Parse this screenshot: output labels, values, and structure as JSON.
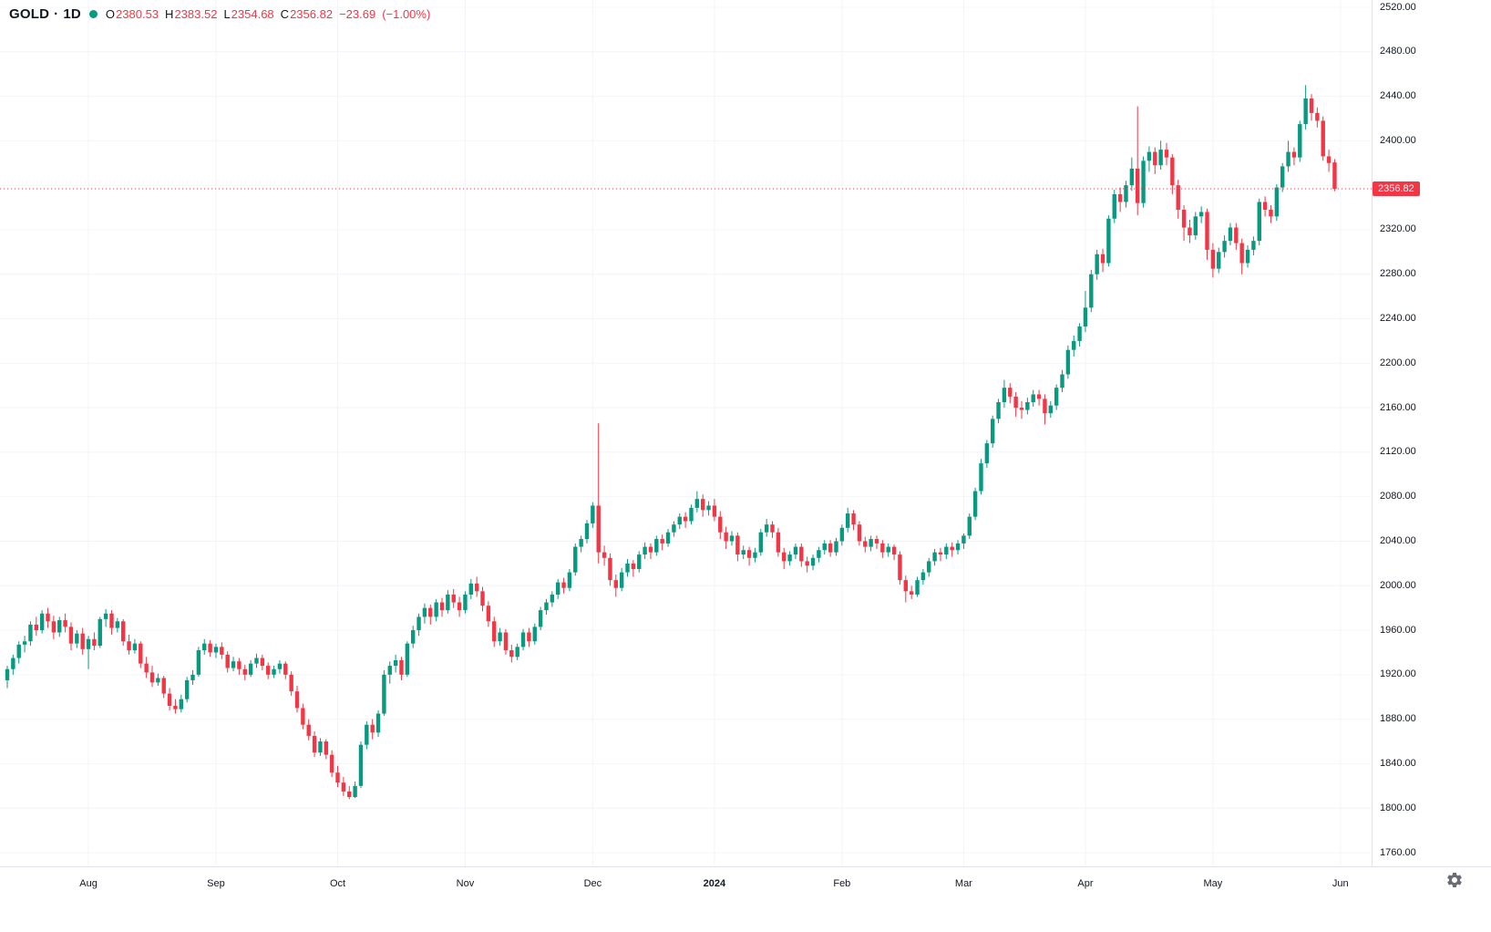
{
  "legend": {
    "symbol": "GOLD",
    "separator": "·",
    "interval": "1D",
    "o_label": "O",
    "o": "2380.53",
    "h_label": "H",
    "h": "2383.52",
    "l_label": "L",
    "l": "2354.68",
    "c_label": "C",
    "c": "2356.82",
    "change": "−23.69",
    "change_pct": "(−1.00%)"
  },
  "colors": {
    "up": "#089981",
    "down": "#f23645",
    "text": "#131722",
    "grid": "#f2f4f7",
    "axis_line": "#e0e3eb",
    "last_price_badge": "#f23645",
    "marker": "#089981",
    "gear": "#50535e"
  },
  "chart_data": {
    "type": "candlestick",
    "title": "GOLD 1D daily candlestick chart",
    "symbol": "GOLD",
    "interval": "1D",
    "ylim": [
      1760,
      2520
    ],
    "y_tick_step": 40,
    "y_tick_labels": [
      "2520.00",
      "2480.00",
      "2440.00",
      "2400.00",
      "2320.00",
      "2280.00",
      "2240.00",
      "2200.00",
      "2160.00",
      "2120.00",
      "2080.00",
      "2040.00",
      "2000.00",
      "1960.00",
      "1920.00",
      "1880.00",
      "1840.00",
      "1800.00",
      "1760.00"
    ],
    "x_ticks": [
      {
        "label": "Aug",
        "index": 14
      },
      {
        "label": "Sep",
        "index": 36
      },
      {
        "label": "Oct",
        "index": 57
      },
      {
        "label": "Nov",
        "index": 79
      },
      {
        "label": "Dec",
        "index": 101
      },
      {
        "label": "2024",
        "index": 122,
        "bold": true
      },
      {
        "label": "Feb",
        "index": 144
      },
      {
        "label": "Mar",
        "index": 165
      },
      {
        "label": "Apr",
        "index": 186
      },
      {
        "label": "May",
        "index": 208
      },
      {
        "label": "Jun",
        "index": 230
      }
    ],
    "last_price": 2356.82,
    "last_price_label": "2356.82",
    "grid": true,
    "legend_position": "top-left",
    "ohlc": [
      [
        1915,
        1928,
        1908,
        1925
      ],
      [
        1925,
        1938,
        1920,
        1935
      ],
      [
        1935,
        1950,
        1930,
        1947
      ],
      [
        1947,
        1955,
        1940,
        1950
      ],
      [
        1950,
        1968,
        1946,
        1965
      ],
      [
        1965,
        1972,
        1955,
        1960
      ],
      [
        1960,
        1978,
        1957,
        1975
      ],
      [
        1975,
        1980,
        1962,
        1968
      ],
      [
        1968,
        1973,
        1952,
        1958
      ],
      [
        1958,
        1972,
        1954,
        1969
      ],
      [
        1969,
        1975,
        1958,
        1963
      ],
      [
        1963,
        1967,
        1942,
        1948
      ],
      [
        1948,
        1960,
        1944,
        1957
      ],
      [
        1957,
        1962,
        1938,
        1943
      ],
      [
        1943,
        1955,
        1925,
        1952
      ],
      [
        1952,
        1958,
        1942,
        1946
      ],
      [
        1946,
        1972,
        1944,
        1970
      ],
      [
        1970,
        1979,
        1963,
        1975
      ],
      [
        1975,
        1978,
        1956,
        1962
      ],
      [
        1962,
        1971,
        1958,
        1968
      ],
      [
        1968,
        1970,
        1946,
        1950
      ],
      [
        1950,
        1956,
        1938,
        1942
      ],
      [
        1942,
        1952,
        1939,
        1948
      ],
      [
        1948,
        1950,
        1926,
        1930
      ],
      [
        1930,
        1936,
        1917,
        1922
      ],
      [
        1922,
        1928,
        1909,
        1913
      ],
      [
        1913,
        1921,
        1910,
        1917
      ],
      [
        1917,
        1919,
        1899,
        1903
      ],
      [
        1903,
        1908,
        1888,
        1892
      ],
      [
        1892,
        1898,
        1885,
        1889
      ],
      [
        1889,
        1902,
        1886,
        1898
      ],
      [
        1898,
        1918,
        1895,
        1915
      ],
      [
        1915,
        1924,
        1911,
        1920
      ],
      [
        1920,
        1945,
        1918,
        1942
      ],
      [
        1942,
        1952,
        1938,
        1948
      ],
      [
        1948,
        1951,
        1936,
        1940
      ],
      [
        1940,
        1948,
        1935,
        1945
      ],
      [
        1945,
        1949,
        1934,
        1938
      ],
      [
        1938,
        1941,
        1922,
        1926
      ],
      [
        1926,
        1936,
        1923,
        1932
      ],
      [
        1932,
        1935,
        1920,
        1925
      ],
      [
        1925,
        1929,
        1915,
        1920
      ],
      [
        1920,
        1933,
        1918,
        1930
      ],
      [
        1930,
        1939,
        1926,
        1935
      ],
      [
        1935,
        1938,
        1924,
        1928
      ],
      [
        1928,
        1931,
        1916,
        1920
      ],
      [
        1920,
        1928,
        1917,
        1925
      ],
      [
        1925,
        1933,
        1921,
        1930
      ],
      [
        1930,
        1932,
        1916,
        1920
      ],
      [
        1920,
        1923,
        1901,
        1905
      ],
      [
        1905,
        1910,
        1886,
        1890
      ],
      [
        1890,
        1894,
        1871,
        1875
      ],
      [
        1875,
        1880,
        1861,
        1865
      ],
      [
        1865,
        1869,
        1846,
        1850
      ],
      [
        1850,
        1863,
        1847,
        1860
      ],
      [
        1860,
        1862,
        1844,
        1848
      ],
      [
        1848,
        1852,
        1828,
        1832
      ],
      [
        1832,
        1838,
        1819,
        1823
      ],
      [
        1823,
        1828,
        1811,
        1815
      ],
      [
        1815,
        1820,
        1808,
        1810
      ],
      [
        1810,
        1824,
        1809,
        1820
      ],
      [
        1820,
        1860,
        1818,
        1857
      ],
      [
        1857,
        1878,
        1853,
        1875
      ],
      [
        1875,
        1880,
        1862,
        1868
      ],
      [
        1868,
        1888,
        1864,
        1885
      ],
      [
        1885,
        1924,
        1883,
        1920
      ],
      [
        1920,
        1932,
        1912,
        1928
      ],
      [
        1928,
        1938,
        1922,
        1933
      ],
      [
        1933,
        1936,
        1915,
        1920
      ],
      [
        1920,
        1950,
        1918,
        1948
      ],
      [
        1948,
        1964,
        1944,
        1960
      ],
      [
        1960,
        1975,
        1955,
        1972
      ],
      [
        1972,
        1984,
        1966,
        1980
      ],
      [
        1980,
        1983,
        1965,
        1972
      ],
      [
        1972,
        1988,
        1968,
        1985
      ],
      [
        1985,
        1989,
        1972,
        1978
      ],
      [
        1978,
        1996,
        1975,
        1992
      ],
      [
        1992,
        1997,
        1980,
        1985
      ],
      [
        1985,
        1990,
        1972,
        1978
      ],
      [
        1978,
        1995,
        1975,
        1992
      ],
      [
        1992,
        2006,
        1988,
        2002
      ],
      [
        2002,
        2008,
        1990,
        1995
      ],
      [
        1995,
        1999,
        1977,
        1982
      ],
      [
        1982,
        1986,
        1963,
        1968
      ],
      [
        1968,
        1972,
        1945,
        1950
      ],
      [
        1950,
        1962,
        1946,
        1958
      ],
      [
        1958,
        1961,
        1938,
        1942
      ],
      [
        1942,
        1947,
        1931,
        1936
      ],
      [
        1936,
        1948,
        1933,
        1945
      ],
      [
        1945,
        1961,
        1942,
        1958
      ],
      [
        1958,
        1962,
        1945,
        1950
      ],
      [
        1950,
        1966,
        1947,
        1963
      ],
      [
        1963,
        1981,
        1960,
        1978
      ],
      [
        1978,
        1988,
        1974,
        1985
      ],
      [
        1985,
        1995,
        1981,
        1992
      ],
      [
        1992,
        2006,
        1988,
        2003
      ],
      [
        2003,
        2007,
        1993,
        1998
      ],
      [
        1998,
        2015,
        1995,
        2012
      ],
      [
        2012,
        2038,
        2009,
        2035
      ],
      [
        2035,
        2045,
        2030,
        2042
      ],
      [
        2042,
        2059,
        2038,
        2056
      ],
      [
        2056,
        2075,
        2052,
        2072
      ],
      [
        2072,
        2146,
        2020,
        2030
      ],
      [
        2030,
        2036,
        2018,
        2025
      ],
      [
        2025,
        2029,
        2000,
        2005
      ],
      [
        2005,
        2010,
        1990,
        1998
      ],
      [
        1998,
        2016,
        1995,
        2012
      ],
      [
        2012,
        2024,
        2008,
        2020
      ],
      [
        2020,
        2023,
        2008,
        2015
      ],
      [
        2015,
        2031,
        2012,
        2028
      ],
      [
        2028,
        2039,
        2024,
        2035
      ],
      [
        2035,
        2038,
        2024,
        2030
      ],
      [
        2030,
        2045,
        2027,
        2042
      ],
      [
        2042,
        2046,
        2032,
        2038
      ],
      [
        2038,
        2051,
        2035,
        2048
      ],
      [
        2048,
        2058,
        2044,
        2055
      ],
      [
        2055,
        2065,
        2051,
        2062
      ],
      [
        2062,
        2066,
        2052,
        2058
      ],
      [
        2058,
        2073,
        2055,
        2070
      ],
      [
        2070,
        2085,
        2066,
        2078
      ],
      [
        2078,
        2082,
        2062,
        2068
      ],
      [
        2068,
        2076,
        2063,
        2072
      ],
      [
        2072,
        2078,
        2058,
        2062
      ],
      [
        2062,
        2067,
        2042,
        2048
      ],
      [
        2048,
        2053,
        2033,
        2040
      ],
      [
        2040,
        2049,
        2036,
        2045
      ],
      [
        2045,
        2048,
        2022,
        2028
      ],
      [
        2028,
        2036,
        2024,
        2032
      ],
      [
        2032,
        2035,
        2018,
        2025
      ],
      [
        2025,
        2034,
        2021,
        2030
      ],
      [
        2030,
        2051,
        2027,
        2048
      ],
      [
        2048,
        2060,
        2044,
        2055
      ],
      [
        2055,
        2058,
        2043,
        2048
      ],
      [
        2048,
        2052,
        2026,
        2030
      ],
      [
        2030,
        2034,
        2015,
        2022
      ],
      [
        2022,
        2031,
        2018,
        2028
      ],
      [
        2028,
        2038,
        2024,
        2035
      ],
      [
        2035,
        2038,
        2017,
        2022
      ],
      [
        2022,
        2026,
        2012,
        2018
      ],
      [
        2018,
        2028,
        2014,
        2025
      ],
      [
        2025,
        2035,
        2021,
        2032
      ],
      [
        2032,
        2041,
        2028,
        2038
      ],
      [
        2038,
        2041,
        2026,
        2030
      ],
      [
        2030,
        2043,
        2027,
        2040
      ],
      [
        2040,
        2055,
        2036,
        2052
      ],
      [
        2052,
        2070,
        2048,
        2065
      ],
      [
        2065,
        2068,
        2050,
        2055
      ],
      [
        2055,
        2058,
        2036,
        2040
      ],
      [
        2040,
        2044,
        2030,
        2035
      ],
      [
        2035,
        2045,
        2031,
        2042
      ],
      [
        2042,
        2045,
        2033,
        2038
      ],
      [
        2038,
        2041,
        2025,
        2030
      ],
      [
        2030,
        2038,
        2026,
        2035
      ],
      [
        2035,
        2037,
        2023,
        2028
      ],
      [
        2028,
        2031,
        2001,
        2005
      ],
      [
        2005,
        2009,
        1985,
        1995
      ],
      [
        1995,
        2000,
        1988,
        1992
      ],
      [
        1992,
        2008,
        1990,
        2005
      ],
      [
        2005,
        2015,
        2001,
        2012
      ],
      [
        2012,
        2025,
        2008,
        2022
      ],
      [
        2022,
        2033,
        2018,
        2030
      ],
      [
        2030,
        2034,
        2022,
        2028
      ],
      [
        2028,
        2038,
        2024,
        2035
      ],
      [
        2035,
        2039,
        2026,
        2032
      ],
      [
        2032,
        2041,
        2028,
        2038
      ],
      [
        2038,
        2047,
        2033,
        2045
      ],
      [
        2045,
        2065,
        2042,
        2062
      ],
      [
        2062,
        2088,
        2059,
        2085
      ],
      [
        2085,
        2114,
        2082,
        2110
      ],
      [
        2110,
        2131,
        2106,
        2128
      ],
      [
        2128,
        2153,
        2124,
        2150
      ],
      [
        2150,
        2168,
        2146,
        2165
      ],
      [
        2165,
        2185,
        2160,
        2178
      ],
      [
        2178,
        2182,
        2164,
        2170
      ],
      [
        2170,
        2174,
        2152,
        2160
      ],
      [
        2160,
        2166,
        2150,
        2158
      ],
      [
        2158,
        2169,
        2154,
        2165
      ],
      [
        2165,
        2176,
        2161,
        2172
      ],
      [
        2172,
        2176,
        2162,
        2168
      ],
      [
        2168,
        2172,
        2145,
        2155
      ],
      [
        2155,
        2166,
        2151,
        2162
      ],
      [
        2162,
        2181,
        2158,
        2178
      ],
      [
        2178,
        2194,
        2174,
        2190
      ],
      [
        2190,
        2216,
        2186,
        2212
      ],
      [
        2212,
        2225,
        2206,
        2220
      ],
      [
        2220,
        2236,
        2215,
        2233
      ],
      [
        2233,
        2265,
        2228,
        2250
      ],
      [
        2250,
        2284,
        2246,
        2280
      ],
      [
        2280,
        2302,
        2275,
        2298
      ],
      [
        2298,
        2303,
        2282,
        2290
      ],
      [
        2290,
        2333,
        2287,
        2330
      ],
      [
        2330,
        2356,
        2326,
        2352
      ],
      [
        2352,
        2358,
        2336,
        2345
      ],
      [
        2345,
        2364,
        2340,
        2360
      ],
      [
        2360,
        2385,
        2355,
        2375
      ],
      [
        2375,
        2431,
        2333,
        2344
      ],
      [
        2344,
        2386,
        2340,
        2382
      ],
      [
        2382,
        2395,
        2372,
        2390
      ],
      [
        2390,
        2394,
        2370,
        2378
      ],
      [
        2378,
        2400,
        2374,
        2392
      ],
      [
        2392,
        2398,
        2378,
        2385
      ],
      [
        2385,
        2388,
        2352,
        2360
      ],
      [
        2360,
        2365,
        2330,
        2338
      ],
      [
        2338,
        2342,
        2310,
        2322
      ],
      [
        2322,
        2329,
        2308,
        2315
      ],
      [
        2315,
        2336,
        2311,
        2332
      ],
      [
        2332,
        2341,
        2326,
        2336
      ],
      [
        2336,
        2339,
        2293,
        2302
      ],
      [
        2302,
        2308,
        2277,
        2285
      ],
      [
        2285,
        2304,
        2281,
        2300
      ],
      [
        2300,
        2315,
        2295,
        2310
      ],
      [
        2310,
        2326,
        2306,
        2322
      ],
      [
        2322,
        2326,
        2302,
        2308
      ],
      [
        2308,
        2312,
        2280,
        2290
      ],
      [
        2290,
        2306,
        2286,
        2302
      ],
      [
        2302,
        2314,
        2297,
        2310
      ],
      [
        2310,
        2348,
        2306,
        2345
      ],
      [
        2345,
        2350,
        2332,
        2338
      ],
      [
        2338,
        2342,
        2326,
        2332
      ],
      [
        2332,
        2361,
        2328,
        2358
      ],
      [
        2358,
        2380,
        2354,
        2377
      ],
      [
        2377,
        2400,
        2372,
        2390
      ],
      [
        2390,
        2394,
        2378,
        2385
      ],
      [
        2385,
        2418,
        2381,
        2415
      ],
      [
        2415,
        2450,
        2410,
        2438
      ],
      [
        2438,
        2442,
        2418,
        2425
      ],
      [
        2425,
        2430,
        2412,
        2418
      ],
      [
        2418,
        2422,
        2382,
        2386
      ],
      [
        2386,
        2392,
        2372,
        2380
      ],
      [
        2380.53,
        2383.52,
        2354.68,
        2356.82
      ]
    ]
  }
}
